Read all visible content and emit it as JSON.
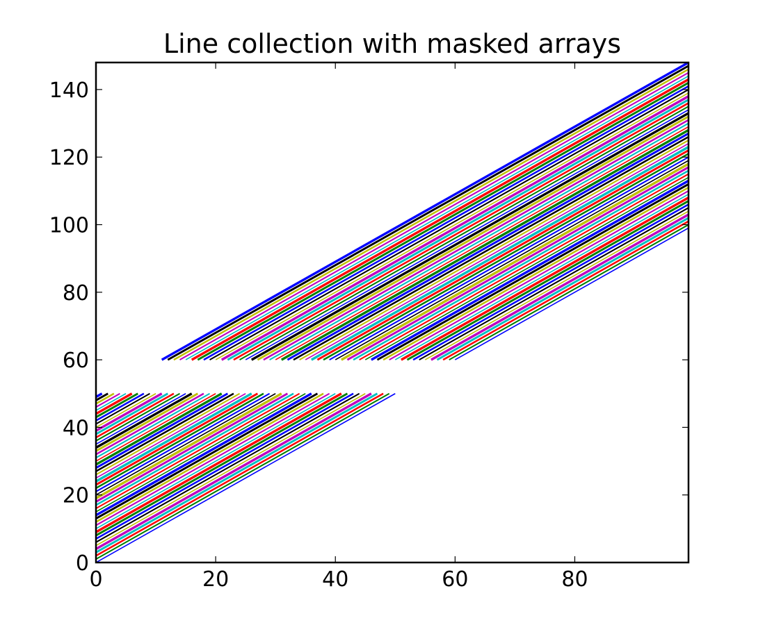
{
  "chart_data": {
    "type": "line",
    "title": "Line collection with masked arrays",
    "xlabel": "",
    "ylabel": "",
    "xlim": [
      0,
      99
    ],
    "ylim": [
      0,
      148
    ],
    "grid": false,
    "legend": "none",
    "x_ticks": [
      0,
      20,
      40,
      60,
      80
    ],
    "y_ticks": [
      0,
      20,
      40,
      60,
      80,
      100,
      120,
      140
    ],
    "x_tick_labels": [
      "0",
      "20",
      "40",
      "60",
      "80"
    ],
    "y_tick_labels": [
      "0",
      "20",
      "40",
      "60",
      "80",
      "100",
      "120",
      "140"
    ],
    "color_cycle": [
      "#0000ff",
      "#008000",
      "#ff0000",
      "#00bfbf",
      "#bf00bf",
      "#bfbf00",
      "#000000"
    ],
    "series": {
      "count": 50,
      "x": [
        0,
        99
      ],
      "y_start_offsets": [
        0,
        1,
        2,
        3,
        4,
        5,
        6,
        7,
        8,
        9,
        10,
        11,
        12,
        13,
        14,
        15,
        16,
        17,
        18,
        19,
        20,
        21,
        22,
        23,
        24,
        25,
        26,
        27,
        28,
        29,
        30,
        31,
        32,
        33,
        34,
        35,
        36,
        37,
        38,
        39,
        40,
        41,
        42,
        43,
        44,
        45,
        46,
        47,
        48,
        49
      ],
      "slope": 1,
      "masked_y_range": [
        50,
        60
      ]
    }
  }
}
